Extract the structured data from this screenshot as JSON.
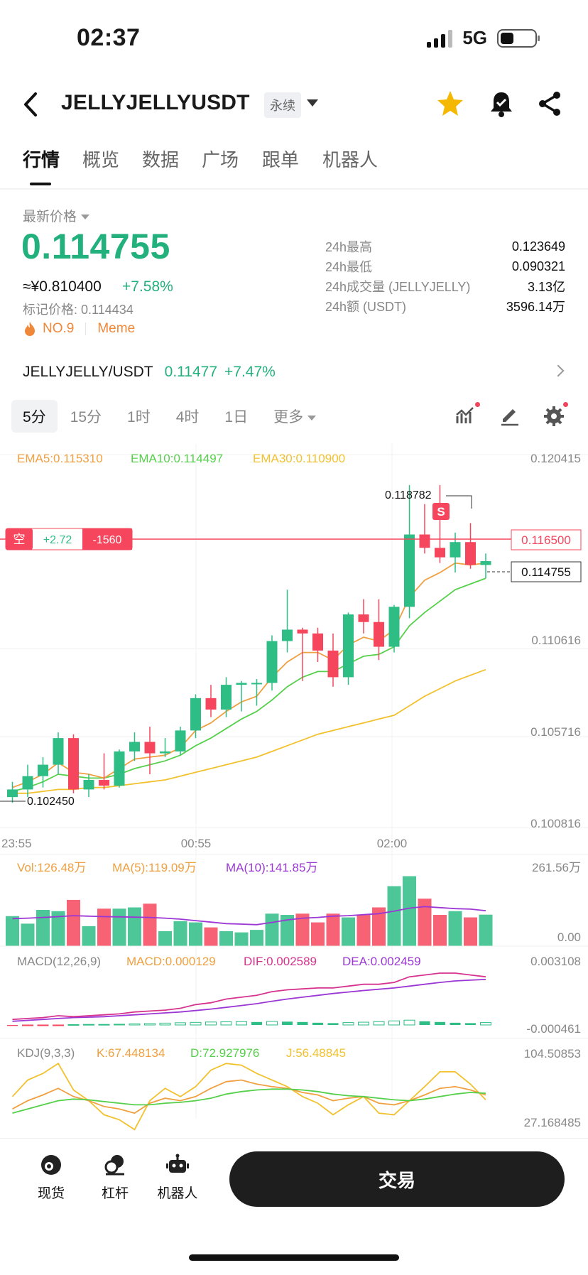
{
  "status_bar": {
    "time": "02:37",
    "network": "5G"
  },
  "header": {
    "symbol": "JELLYJELLYUSDT",
    "contract_type": "永续",
    "icons": [
      "back-icon",
      "star-icon",
      "alert-bell-icon",
      "share-icon"
    ],
    "favorite_color": "#f5b800"
  },
  "tabs": [
    "行情",
    "概览",
    "数据",
    "广场",
    "跟单",
    "机器人"
  ],
  "ticker": {
    "latest_label": "最新价格",
    "last_price": "0.114755",
    "cny_price": "≈¥0.810400",
    "change_pct": "+7.58%",
    "mark_price": "标记价格: 0.114434",
    "rank": "NO.9",
    "category": "Meme",
    "stats": [
      {
        "label": "24h最高",
        "value": "0.123649"
      },
      {
        "label": "24h最低",
        "value": "0.090321"
      },
      {
        "label": "24h成交量 (JELLYJELLY)",
        "value": "3.13亿"
      },
      {
        "label": "24h额 (USDT)",
        "value": "3596.14万"
      }
    ]
  },
  "spot_pair": {
    "name": "JELLYJELLY/USDT",
    "price": "0.11477",
    "change": "+7.47%"
  },
  "intervals": {
    "items": [
      "5分",
      "15分",
      "1时",
      "4时",
      "1日",
      "更多"
    ],
    "selected": "5分"
  },
  "colors": {
    "up": "#2ebd85",
    "down": "#f6465d",
    "ema5": "#f0a040",
    "ema10": "#55d04a",
    "ema30": "#f2c12e",
    "vol_ma10": "#9b37d4",
    "macd_dif": "#d6338f"
  },
  "chart_data": {
    "type": "candlestick",
    "legend": {
      "ema5": "EMA5:0.115310",
      "ema10": "EMA10:0.114497",
      "ema30": "EMA30:0.110900",
      "vol": "Vol:126.48万",
      "vol_ma5": "MA(5):119.09万",
      "vol_ma10": "MA(10):141.85万",
      "macd_title": "MACD(12,26,9)",
      "macd": "MACD:0.000129",
      "dif": "DIF:0.002589",
      "dea": "DEA:0.002459",
      "kdj_title": "KDJ(9,3,3)",
      "k": "K:67.448134",
      "d": "D:72.927976",
      "j": "J:56.48845"
    },
    "price_axis": [
      "0.120415",
      "0.110616",
      "0.105716",
      "0.100816"
    ],
    "ylim": [
      0.100816,
      0.120415
    ],
    "time_labels": [
      "23:55",
      "00:55",
      "02:00"
    ],
    "vol_axis": [
      "261.56万",
      "0.00"
    ],
    "macd_axis": [
      "0.003108",
      "-0.000461"
    ],
    "kdj_axis": [
      "104.50853",
      "27.168485"
    ],
    "high_label": "0.118782",
    "low_label": "0.102450",
    "position": {
      "side": "空",
      "pnl": "+2.72",
      "qty": "-1560",
      "entry_price": "0.116500"
    },
    "last_price_tag": "0.114755",
    "sell_marker": "S",
    "candles": [
      {
        "o": 0.1024,
        "h": 0.1032,
        "l": 0.1021,
        "c": 0.1028
      },
      {
        "o": 0.1028,
        "h": 0.1041,
        "l": 0.1024,
        "c": 0.1035
      },
      {
        "o": 0.1035,
        "h": 0.1045,
        "l": 0.1029,
        "c": 0.1041
      },
      {
        "o": 0.1041,
        "h": 0.1058,
        "l": 0.1036,
        "c": 0.1055
      },
      {
        "o": 0.1055,
        "h": 0.1057,
        "l": 0.1026,
        "c": 0.1028
      },
      {
        "o": 0.1028,
        "h": 0.1036,
        "l": 0.1024,
        "c": 0.1033
      },
      {
        "o": 0.1033,
        "h": 0.1047,
        "l": 0.1028,
        "c": 0.103
      },
      {
        "o": 0.103,
        "h": 0.1049,
        "l": 0.1029,
        "c": 0.1048
      },
      {
        "o": 0.1048,
        "h": 0.1058,
        "l": 0.1043,
        "c": 0.1053
      },
      {
        "o": 0.1053,
        "h": 0.1061,
        "l": 0.1036,
        "c": 0.1047
      },
      {
        "o": 0.1047,
        "h": 0.1055,
        "l": 0.1045,
        "c": 0.1048
      },
      {
        "o": 0.1048,
        "h": 0.1061,
        "l": 0.1046,
        "c": 0.1059
      },
      {
        "o": 0.1059,
        "h": 0.1078,
        "l": 0.1055,
        "c": 0.1076
      },
      {
        "o": 0.1076,
        "h": 0.1083,
        "l": 0.1066,
        "c": 0.107
      },
      {
        "o": 0.107,
        "h": 0.1087,
        "l": 0.1066,
        "c": 0.1083
      },
      {
        "o": 0.1083,
        "h": 0.1085,
        "l": 0.1069,
        "c": 0.1084
      },
      {
        "o": 0.1084,
        "h": 0.1086,
        "l": 0.1072,
        "c": 0.1084
      },
      {
        "o": 0.1084,
        "h": 0.1109,
        "l": 0.108,
        "c": 0.1106
      },
      {
        "o": 0.1106,
        "h": 0.1133,
        "l": 0.11,
        "c": 0.1112
      },
      {
        "o": 0.1112,
        "h": 0.1113,
        "l": 0.1085,
        "c": 0.111
      },
      {
        "o": 0.111,
        "h": 0.1113,
        "l": 0.1095,
        "c": 0.1101
      },
      {
        "o": 0.1101,
        "h": 0.111,
        "l": 0.1082,
        "c": 0.1087
      },
      {
        "o": 0.1087,
        "h": 0.1121,
        "l": 0.1083,
        "c": 0.112
      },
      {
        "o": 0.112,
        "h": 0.1128,
        "l": 0.111,
        "c": 0.1116
      },
      {
        "o": 0.1116,
        "h": 0.1128,
        "l": 0.1096,
        "c": 0.1103
      },
      {
        "o": 0.1103,
        "h": 0.1125,
        "l": 0.11,
        "c": 0.1124
      },
      {
        "o": 0.1124,
        "h": 0.1188,
        "l": 0.1118,
        "c": 0.1162
      },
      {
        "o": 0.1162,
        "h": 0.1178,
        "l": 0.1152,
        "c": 0.1155
      },
      {
        "o": 0.1155,
        "h": 0.1188,
        "l": 0.1147,
        "c": 0.115
      },
      {
        "o": 0.115,
        "h": 0.1163,
        "l": 0.1142,
        "c": 0.1158
      },
      {
        "o": 0.1158,
        "h": 0.1168,
        "l": 0.1144,
        "c": 0.1146
      },
      {
        "o": 0.1146,
        "h": 0.1152,
        "l": 0.1139,
        "c": 0.1148
      }
    ],
    "ema5": [
      0.1029,
      0.1032,
      0.1036,
      0.1042,
      0.1037,
      0.1036,
      0.1034,
      0.1039,
      0.1044,
      0.1045,
      0.1046,
      0.105,
      0.1059,
      0.1063,
      0.1069,
      0.1074,
      0.1077,
      0.1087,
      0.1095,
      0.11,
      0.11,
      0.1096,
      0.1104,
      0.1108,
      0.1106,
      0.1112,
      0.1129,
      0.1138,
      0.1142,
      0.1147,
      0.1146,
      0.1147
    ],
    "ema10": [
      0.1027,
      0.1029,
      0.1032,
      0.1036,
      0.1035,
      0.1034,
      0.1034,
      0.1036,
      0.1039,
      0.1041,
      0.1043,
      0.1046,
      0.1051,
      0.1055,
      0.106,
      0.1065,
      0.1069,
      0.1075,
      0.1082,
      0.1087,
      0.109,
      0.109,
      0.1094,
      0.1098,
      0.1099,
      0.1103,
      0.1114,
      0.1121,
      0.1127,
      0.1133,
      0.1136,
      0.1139
    ],
    "ema30": [
      0.1026,
      0.1026,
      0.1027,
      0.1028,
      0.1028,
      0.1029,
      0.1029,
      0.103,
      0.1031,
      0.1032,
      0.1033,
      0.1035,
      0.1037,
      0.1039,
      0.1041,
      0.1043,
      0.1045,
      0.1048,
      0.1051,
      0.1054,
      0.1057,
      0.1059,
      0.1061,
      0.1063,
      0.1065,
      0.1067,
      0.1072,
      0.1077,
      0.1081,
      0.1085,
      0.1088,
      0.1091
    ],
    "volume": [
      120,
      90,
      145,
      140,
      185,
      80,
      150,
      150,
      155,
      170,
      60,
      100,
      95,
      75,
      60,
      55,
      65,
      130,
      125,
      130,
      95,
      130,
      115,
      125,
      155,
      240,
      280,
      190,
      125,
      140,
      115,
      126
    ],
    "volume_ma10": [
      110,
      112,
      115,
      118,
      122,
      120,
      118,
      117,
      116,
      115,
      112,
      108,
      102,
      96,
      90,
      88,
      86,
      95,
      105,
      112,
      115,
      120,
      122,
      126,
      130,
      140,
      152,
      158,
      154,
      150,
      148,
      142
    ],
    "macd_hist": [
      -5e-05,
      -4e-05,
      -3e-05,
      -1e-05,
      2e-05,
      3e-05,
      3e-05,
      4e-05,
      6e-05,
      8e-05,
      0.0001,
      0.00012,
      0.00014,
      0.00016,
      0.00017,
      0.00018,
      0.00016,
      0.00019,
      0.00018,
      0.00016,
      0.00012,
      0.0001,
      0.00013,
      0.00015,
      0.00018,
      0.00022,
      0.00026,
      0.0002,
      0.00016,
      0.00012,
      0.0001,
      0.00013
    ],
    "macd_dif": [
      0.0003,
      0.00035,
      0.0004,
      0.0005,
      0.00045,
      0.0005,
      0.00055,
      0.0006,
      0.0007,
      0.00075,
      0.0008,
      0.0009,
      0.0011,
      0.0012,
      0.0014,
      0.0015,
      0.0016,
      0.0018,
      0.0019,
      0.00195,
      0.002,
      0.002,
      0.0021,
      0.0022,
      0.0022,
      0.0023,
      0.0026,
      0.0027,
      0.0028,
      0.0028,
      0.0027,
      0.0026
    ],
    "macd_dea": [
      0.0002,
      0.00025,
      0.0003,
      0.00035,
      0.0004,
      0.00042,
      0.00045,
      0.0005,
      0.00055,
      0.0006,
      0.00065,
      0.0007,
      0.00078,
      0.00086,
      0.00095,
      0.00105,
      0.00115,
      0.00128,
      0.0014,
      0.0015,
      0.0016,
      0.0017,
      0.00178,
      0.00186,
      0.00193,
      0.002,
      0.0021,
      0.0022,
      0.0023,
      0.00238,
      0.00242,
      0.00246
    ],
    "kdj_k": [
      45,
      55,
      62,
      70,
      60,
      55,
      48,
      45,
      40,
      52,
      58,
      55,
      60,
      70,
      78,
      80,
      75,
      72,
      70,
      65,
      62,
      55,
      58,
      60,
      52,
      50,
      55,
      62,
      70,
      72,
      68,
      62
    ],
    "kdj_d": [
      40,
      45,
      50,
      55,
      57,
      56,
      54,
      52,
      50,
      50,
      52,
      53,
      55,
      58,
      63,
      66,
      68,
      69,
      69,
      68,
      66,
      63,
      61,
      60,
      58,
      56,
      55,
      57,
      60,
      63,
      65,
      64
    ],
    "kdj_j": [
      60,
      80,
      88,
      100,
      68,
      55,
      38,
      32,
      20,
      55,
      70,
      60,
      72,
      92,
      100,
      98,
      88,
      80,
      72,
      60,
      52,
      38,
      50,
      60,
      40,
      38,
      55,
      72,
      90,
      90,
      75,
      56
    ]
  },
  "bottom_nav": {
    "items": [
      "现货",
      "杠杆",
      "机器人"
    ],
    "trade_button": "交易"
  }
}
